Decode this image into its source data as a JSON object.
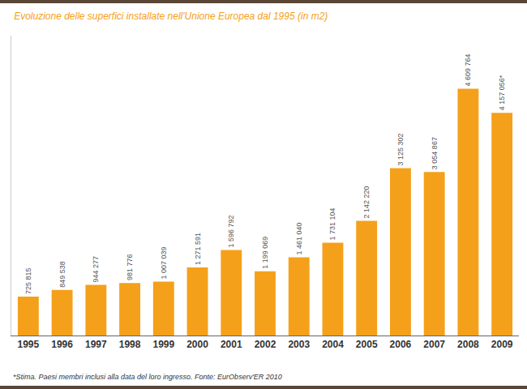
{
  "chart_data": {
    "type": "bar",
    "title": "Evoluzione delle superfici installate nell'Unione Europea dal 1995 (in m2)",
    "annotations": [
      "*Stima. Paesi membri inclusi alla data del loro ingresso. Fonte: EurObserv'ER 2010"
    ],
    "categories": [
      "1995",
      "1996",
      "1997",
      "1998",
      "1999",
      "2000",
      "2001",
      "2002",
      "2003",
      "2004",
      "2005",
      "2006",
      "2007",
      "2008",
      "2009"
    ],
    "values": [
      725815,
      849538,
      944277,
      981776,
      1007039,
      1271591,
      1596792,
      1199069,
      1461040,
      1731104,
      2142220,
      3125302,
      3054867,
      4609764,
      4157056
    ],
    "value_labels": [
      "725 815",
      "849 538",
      "944 277",
      "981 776",
      "1 007 039",
      "1 271 591",
      "1 596 792",
      "1 199 069",
      "1 461 040",
      "1 731 104",
      "2 142 220",
      "3 125 302",
      "3 054 867",
      "4 609 764",
      "4 157 056*"
    ],
    "color": "#f5a01a",
    "ylim": [
      0,
      5600000
    ],
    "grid": false,
    "data_labels": true,
    "tick_labels": "x"
  }
}
